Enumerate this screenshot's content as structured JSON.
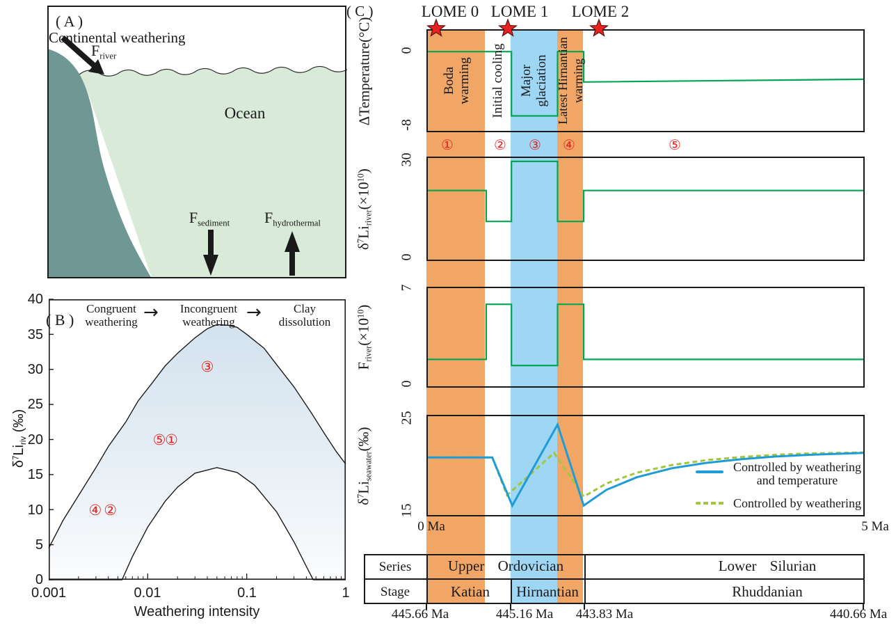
{
  "panel_a": {
    "label": "( A )",
    "caption": "Continental weathering",
    "ocean_label": "Ocean",
    "fluxes": {
      "river": {
        "symbol": "F",
        "sub": "river"
      },
      "sediment": {
        "symbol": "F",
        "sub": "sediment"
      },
      "hydrothermal": {
        "symbol": "F",
        "sub": "hydrothermal"
      }
    },
    "colors": {
      "land": "#6F9894",
      "ocean": "#D9EAD9"
    }
  },
  "panel_b": {
    "label": "( B )",
    "regimes": [
      {
        "line1": "Congruent",
        "line2": "weathering"
      },
      {
        "line1": "Incongruent",
        "line2": "weathering"
      },
      {
        "line1": "Clay",
        "line2": "dissolution"
      }
    ],
    "arrow": "→",
    "ylabel": {
      "base": "δ",
      "iso": "7",
      "element": "Li",
      "sub": "riv",
      "unit": " (‰)"
    },
    "xlabel": "Weathering intensity",
    "yticks": [
      "40",
      "35",
      "30",
      "25",
      "20",
      "15",
      "10",
      "5",
      "0"
    ],
    "xticks": [
      "0.001",
      "0.01",
      "0.1",
      "1"
    ]
  },
  "panel_c": {
    "label": "( C )",
    "events": [
      {
        "name": "LOME 0"
      },
      {
        "name": "LOME 1"
      },
      {
        "name": "LOME 2"
      }
    ],
    "star_color": "#E8231F",
    "intervals": [
      {
        "number": "①",
        "lines": [
          "Boda",
          "warming"
        ],
        "fill": "#F2A666"
      },
      {
        "number": "②",
        "lines": [
          "Initial cooling"
        ],
        "fill": null
      },
      {
        "number": "③",
        "lines": [
          "Major",
          "glaciation"
        ],
        "fill": "#9ED6F4"
      },
      {
        "number": "④",
        "lines": [
          "Latest Hirnantian",
          "warming"
        ],
        "fill": "#F2A666"
      },
      {
        "number": "⑤",
        "lines": [],
        "fill": null
      }
    ],
    "subplots": {
      "temperature": {
        "ylabel": "ΔTemperature(°C)",
        "yticks": [
          "0",
          "-8"
        ]
      },
      "li_river": {
        "ylabel": {
          "base": "δ",
          "iso": "7",
          "element": "Li",
          "sub": "river",
          "factor": "(×10",
          "exp": "10",
          "close": ")"
        },
        "yticks": [
          "30",
          "0"
        ]
      },
      "f_river": {
        "ylabel": {
          "element": "F",
          "sub": "river",
          "factor": "(×10",
          "exp": "10",
          "close": ")"
        },
        "yticks": [
          "7",
          "0"
        ]
      },
      "seawater": {
        "ylabel": {
          "base": "δ",
          "iso": "7",
          "element": "Li",
          "sub": "seawater",
          "unit": "(‰)"
        },
        "yticks": [
          "25",
          "15"
        ],
        "xtick_left": "0 Ma",
        "xtick_right": "5 Ma",
        "legend": [
          {
            "style": "solid",
            "color": "#1E9CD7",
            "lines": [
              "Controlled by weathering",
              "and temperature"
            ]
          },
          {
            "style": "dashed",
            "color": "#A2C63C",
            "lines": [
              "Controlled by weathering"
            ]
          }
        ]
      }
    },
    "stratigraphy": {
      "row_headers": [
        "Series",
        "Stage"
      ],
      "series_cells": [
        "Upper Ordovician",
        "Lower Silurian"
      ],
      "stage_cells": [
        "Katian",
        "Hirnantian",
        "Rhuddanian"
      ],
      "ages": [
        "445.66 Ma",
        "445.16 Ma",
        "443.83 Ma",
        "440.66 Ma"
      ]
    }
  },
  "chart_data": [
    {
      "id": "chart-b",
      "type": "area",
      "xlog": true,
      "log_ticks": true,
      "frame": true,
      "xlim": [
        0.001,
        1
      ],
      "ylim": [
        0,
        40
      ],
      "xlabel": "Weathering intensity",
      "ylabel": "δ7Li riv (‰)",
      "ytick_vals": [
        0,
        5,
        10,
        15,
        20,
        25,
        30,
        35,
        40
      ],
      "band": {
        "stroke": "#1A1A1A",
        "upper": [
          [
            0.001,
            4.5
          ],
          [
            0.0014,
            8.5
          ],
          [
            0.002,
            12
          ],
          [
            0.003,
            16
          ],
          [
            0.004,
            19
          ],
          [
            0.006,
            22.5
          ],
          [
            0.008,
            25.5
          ],
          [
            0.011,
            28
          ],
          [
            0.015,
            30.5
          ],
          [
            0.02,
            32.3
          ],
          [
            0.03,
            34.5
          ],
          [
            0.04,
            35.8
          ],
          [
            0.05,
            36.4
          ],
          [
            0.065,
            36.3
          ],
          [
            0.08,
            36
          ],
          [
            0.1,
            35
          ],
          [
            0.15,
            33
          ],
          [
            0.2,
            30.7
          ],
          [
            0.3,
            27.5
          ],
          [
            0.45,
            23.8
          ],
          [
            0.6,
            21
          ],
          [
            0.8,
            18.3
          ],
          [
            1,
            16.5
          ]
        ],
        "lower": [
          [
            0.001,
            0
          ],
          [
            0.0055,
            0
          ],
          [
            0.007,
            3.3
          ],
          [
            0.01,
            7.5
          ],
          [
            0.015,
            11.2
          ],
          [
            0.02,
            13.2
          ],
          [
            0.03,
            15.2
          ],
          [
            0.05,
            16
          ],
          [
            0.08,
            15.3
          ],
          [
            0.12,
            13.5
          ],
          [
            0.2,
            9.7
          ],
          [
            0.3,
            5.4
          ],
          [
            0.4,
            1.9
          ],
          [
            0.47,
            0
          ],
          [
            1,
            0
          ]
        ]
      },
      "marker_color": "#E8231F",
      "markers": [
        {
          "glyph": "③",
          "x": 0.04,
          "y": 30.4
        },
        {
          "glyph": "⑤",
          "x": 0.0131,
          "y": 20
        },
        {
          "glyph": "①",
          "x": 0.0174,
          "y": 20
        },
        {
          "glyph": "④",
          "x": 0.00295,
          "y": 10
        },
        {
          "glyph": "②",
          "x": 0.0042,
          "y": 10
        }
      ]
    },
    {
      "id": "chart-temp",
      "type": "line",
      "xlim": [
        0,
        5
      ],
      "ylim": [
        -8.75,
        2.32
      ],
      "ylabel": "ΔTemperature (°C)",
      "ytick_labels": [
        0,
        -8
      ],
      "series": [
        {
          "name": "delta-temperature-line",
          "color": "#00A651",
          "width": 2.2,
          "points": [
            [
              0,
              0
            ],
            [
              0.96,
              0
            ],
            [
              0.96,
              -7.1
            ],
            [
              1.49,
              -7.1
            ],
            [
              1.49,
              0
            ],
            [
              1.79,
              0
            ],
            [
              1.79,
              -3.35
            ],
            [
              5,
              -3.05
            ]
          ]
        }
      ]
    },
    {
      "id": "chart-li-river",
      "type": "line",
      "xlim": [
        0,
        5
      ],
      "ylim": [
        -1.07,
        31.07
      ],
      "ylabel": "δ7Li river (×10^10)",
      "ytick_labels": [
        30,
        0
      ],
      "series": [
        {
          "name": "li7-river-line",
          "color": "#00A651",
          "width": 2.2,
          "points": [
            [
              0,
              20.8
            ],
            [
              0.67,
              20.8
            ],
            [
              0.67,
              11
            ],
            [
              0.96,
              11
            ],
            [
              0.96,
              30
            ],
            [
              1.49,
              30
            ],
            [
              1.49,
              11
            ],
            [
              1.79,
              11
            ],
            [
              1.79,
              20.8
            ],
            [
              5,
              20.8
            ]
          ]
        }
      ]
    },
    {
      "id": "chart-f-river",
      "type": "line",
      "xlim": [
        0,
        5
      ],
      "ylim": [
        -0.2,
        7.1
      ],
      "ylabel": "F river (×10^10)",
      "ytick_labels": [
        7,
        0
      ],
      "series": [
        {
          "name": "f-river-line",
          "color": "#00A651",
          "width": 2.2,
          "points": [
            [
              0,
              1.8
            ],
            [
              0.67,
              1.8
            ],
            [
              0.67,
              5.9
            ],
            [
              0.96,
              5.9
            ],
            [
              0.96,
              1.35
            ],
            [
              1.49,
              1.35
            ],
            [
              1.49,
              5.9
            ],
            [
              1.79,
              5.9
            ],
            [
              1.79,
              1.8
            ],
            [
              5,
              1.8
            ]
          ]
        }
      ]
    },
    {
      "id": "chart-seawater",
      "type": "line",
      "xlim": [
        0,
        5
      ],
      "ylim": [
        14.4,
        25.38
      ],
      "ylabel": "δ7Li seawater (‰)",
      "ytick_labels": [
        25,
        15
      ],
      "x_units": "Ma",
      "series": [
        {
          "name": "controlled-by-weathering-line",
          "color": "#A2C63C",
          "width": 3,
          "dash": "7,4.5",
          "points": [
            [
              0,
              20.8
            ],
            [
              0.74,
              20.8
            ],
            [
              0.91,
              16.6
            ],
            [
              1.45,
              21.3
            ],
            [
              1.79,
              16.45
            ],
            [
              2.05,
              17.9
            ],
            [
              2.4,
              19.1
            ],
            [
              2.8,
              19.95
            ],
            [
              3.2,
              20.5
            ],
            [
              3.6,
              20.85
            ],
            [
              4,
              21.1
            ],
            [
              4.4,
              21.25
            ],
            [
              5,
              21.35
            ]
          ]
        },
        {
          "name": "controlled-by-weathering-and-temperature-line",
          "color": "#1E9CD7",
          "width": 3,
          "points": [
            [
              0,
              20.8
            ],
            [
              0.74,
              20.8
            ],
            [
              0.97,
              15.45
            ],
            [
              1.49,
              24.45
            ],
            [
              1.79,
              15.45
            ],
            [
              2.05,
              17.2
            ],
            [
              2.4,
              18.6
            ],
            [
              2.8,
              19.6
            ],
            [
              3.2,
              20.2
            ],
            [
              3.6,
              20.6
            ],
            [
              4,
              20.9
            ],
            [
              4.4,
              21.1
            ],
            [
              5,
              21.3
            ]
          ]
        }
      ]
    }
  ]
}
